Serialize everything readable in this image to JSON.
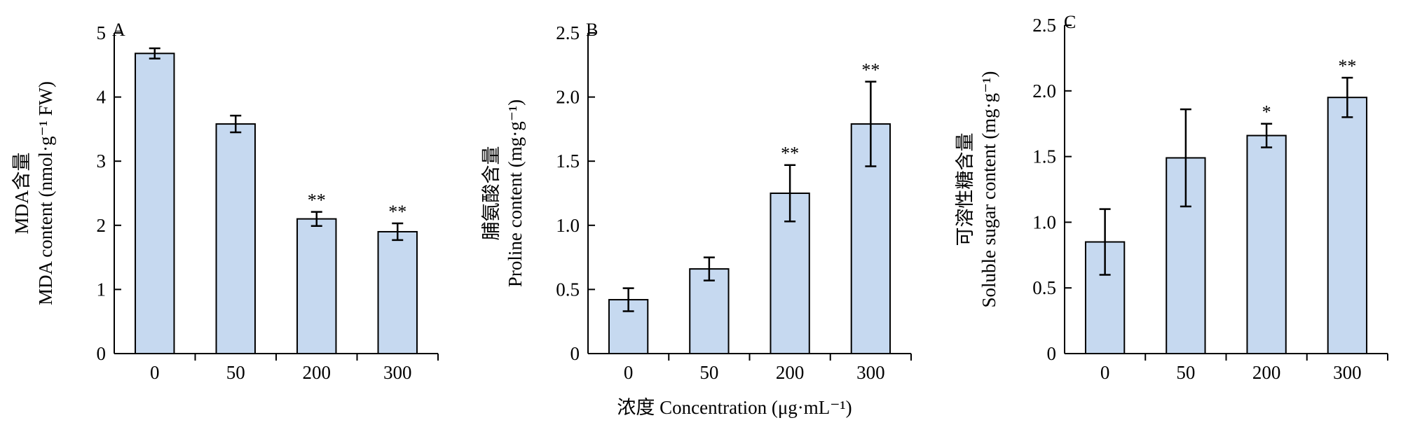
{
  "figure": {
    "xlabel": "浓度 Concentration (μg·mL⁻¹)"
  },
  "chart_data": [
    {
      "type": "bar",
      "panel": "A",
      "categories": [
        "0",
        "50",
        "200",
        "300"
      ],
      "values": [
        4.68,
        3.58,
        2.1,
        1.9
      ],
      "errors": [
        0.08,
        0.13,
        0.11,
        0.13
      ],
      "significance": [
        "",
        "",
        "**",
        "**"
      ],
      "ylabel_line1": "MDA含量",
      "ylabel_line2": "MDA content (nmol·g⁻¹ FW)",
      "ylim": [
        0,
        5
      ],
      "yticks": [
        "0",
        "1",
        "2",
        "3",
        "4",
        "5"
      ],
      "bar_color": "#c6d9f0",
      "grid": false
    },
    {
      "type": "bar",
      "panel": "B",
      "categories": [
        "0",
        "50",
        "200",
        "300"
      ],
      "values": [
        0.42,
        0.66,
        1.25,
        1.79
      ],
      "errors": [
        0.09,
        0.09,
        0.22,
        0.33
      ],
      "significance": [
        "",
        "",
        "**",
        "**"
      ],
      "ylabel_line1": "脯氨酸含量",
      "ylabel_line2": "Proline content (mg·g⁻¹)",
      "ylim": [
        0,
        2.5
      ],
      "yticks": [
        "0",
        "0.5",
        "1.0",
        "1.5",
        "2.0",
        "2.5"
      ],
      "bar_color": "#c6d9f0",
      "grid": false
    },
    {
      "type": "bar",
      "panel": "C",
      "categories": [
        "0",
        "50",
        "200",
        "300"
      ],
      "values": [
        0.85,
        1.49,
        1.66,
        1.95
      ],
      "errors": [
        0.25,
        0.37,
        0.09,
        0.15
      ],
      "significance": [
        "",
        "",
        "*",
        "**"
      ],
      "ylabel_line1": "可溶性糖含量",
      "ylabel_line2": "Soluble sugar content (mg·g⁻¹)",
      "ylim": [
        0,
        2.5
      ],
      "yticks": [
        "0",
        "0.5",
        "1.0",
        "1.5",
        "2.0",
        "2.5"
      ],
      "bar_color": "#c6d9f0",
      "grid": false
    }
  ]
}
